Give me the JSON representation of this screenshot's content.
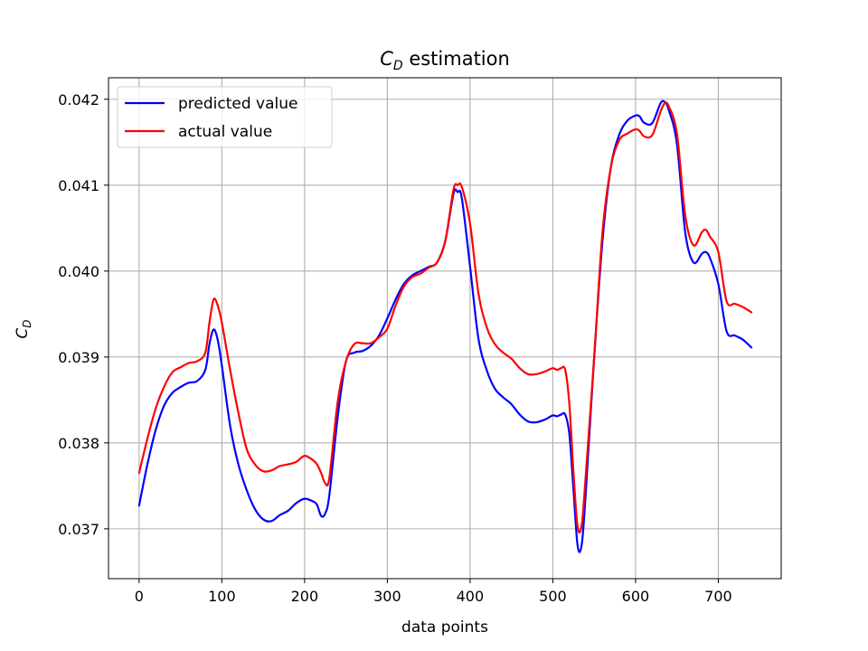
{
  "chart_data": {
    "type": "line",
    "title": "C_D estimation",
    "title_main": "C",
    "title_sub": "D",
    "title_rest": " estimation",
    "xlabel": "data points",
    "ylabel_main": "C",
    "ylabel_sub": "D",
    "xlim": [
      -37,
      776
    ],
    "ylim": [
      0.03642,
      0.04225
    ],
    "xticks": [
      0,
      100,
      200,
      300,
      400,
      500,
      600,
      700
    ],
    "xtick_labels": [
      "0",
      "100",
      "200",
      "300",
      "400",
      "500",
      "600",
      "700"
    ],
    "yticks": [
      0.037,
      0.038,
      0.039,
      0.04,
      0.041,
      0.042
    ],
    "ytick_labels": [
      "0.037",
      "0.038",
      "0.039",
      "0.040",
      "0.041",
      "0.042"
    ],
    "grid": true,
    "legend_position": "top-left",
    "series": [
      {
        "name": "predicted value",
        "color": "#0000ff",
        "x": [
          0,
          10,
          20,
          30,
          40,
          50,
          60,
          70,
          80,
          85,
          90,
          95,
          100,
          110,
          120,
          130,
          140,
          150,
          160,
          170,
          180,
          190,
          200,
          210,
          215,
          220,
          225,
          230,
          240,
          250,
          260,
          270,
          280,
          290,
          300,
          310,
          320,
          330,
          340,
          350,
          360,
          370,
          380,
          385,
          390,
          400,
          410,
          420,
          430,
          440,
          450,
          460,
          470,
          480,
          490,
          500,
          505,
          510,
          515,
          520,
          525,
          530,
          535,
          540,
          550,
          560,
          570,
          580,
          590,
          600,
          605,
          610,
          620,
          630,
          635,
          640,
          650,
          660,
          670,
          680,
          685,
          690,
          700,
          710,
          720,
          730,
          740
        ],
        "y": [
          0.03727,
          0.03775,
          0.03815,
          0.03843,
          0.03858,
          0.03865,
          0.0387,
          0.03872,
          0.03885,
          0.03915,
          0.03932,
          0.0392,
          0.0389,
          0.0382,
          0.03775,
          0.03745,
          0.03723,
          0.03711,
          0.03709,
          0.03716,
          0.03721,
          0.0373,
          0.03735,
          0.03732,
          0.03728,
          0.03715,
          0.03718,
          0.0374,
          0.0383,
          0.03895,
          0.03905,
          0.03907,
          0.03913,
          0.03925,
          0.03945,
          0.03967,
          0.03985,
          0.03995,
          0.04,
          0.04005,
          0.0401,
          0.04035,
          0.0409,
          0.04092,
          0.04085,
          0.04005,
          0.03922,
          0.03885,
          0.03863,
          0.03853,
          0.03845,
          0.03833,
          0.03825,
          0.03824,
          0.03827,
          0.03832,
          0.03831,
          0.03833,
          0.03833,
          0.0381,
          0.03745,
          0.0368,
          0.03682,
          0.03745,
          0.039,
          0.04035,
          0.0412,
          0.04158,
          0.04175,
          0.04181,
          0.0418,
          0.04173,
          0.04172,
          0.04195,
          0.04197,
          0.04188,
          0.04148,
          0.04045,
          0.0401,
          0.0402,
          0.04022,
          0.04015,
          0.03985,
          0.0393,
          0.03925,
          0.0392,
          0.03911
        ]
      },
      {
        "name": "actual value",
        "color": "#ff0000",
        "x": [
          0,
          10,
          20,
          30,
          40,
          50,
          60,
          70,
          80,
          85,
          90,
          95,
          100,
          110,
          120,
          130,
          140,
          150,
          160,
          170,
          180,
          190,
          200,
          210,
          215,
          220,
          225,
          230,
          240,
          250,
          260,
          270,
          280,
          290,
          300,
          310,
          320,
          330,
          340,
          350,
          360,
          370,
          380,
          385,
          390,
          400,
          410,
          420,
          430,
          440,
          450,
          460,
          470,
          480,
          490,
          500,
          505,
          510,
          515,
          520,
          525,
          530,
          535,
          540,
          550,
          560,
          570,
          580,
          590,
          600,
          605,
          610,
          620,
          630,
          635,
          640,
          650,
          660,
          670,
          680,
          685,
          690,
          700,
          710,
          720,
          730,
          740
        ],
        "y": [
          0.03765,
          0.03805,
          0.0384,
          0.03865,
          0.03882,
          0.03888,
          0.03893,
          0.03895,
          0.03905,
          0.0394,
          0.03967,
          0.0396,
          0.0394,
          0.03885,
          0.03835,
          0.03793,
          0.03775,
          0.03767,
          0.03768,
          0.03773,
          0.03775,
          0.03778,
          0.03785,
          0.0378,
          0.03775,
          0.03765,
          0.03753,
          0.0376,
          0.03848,
          0.03895,
          0.03915,
          0.03916,
          0.03916,
          0.03923,
          0.03933,
          0.0396,
          0.03982,
          0.03993,
          0.03997,
          0.04004,
          0.0401,
          0.04035,
          0.04095,
          0.041,
          0.04098,
          0.04055,
          0.03975,
          0.03935,
          0.03915,
          0.03905,
          0.03898,
          0.03887,
          0.0388,
          0.0388,
          0.03883,
          0.03887,
          0.03885,
          0.03887,
          0.03885,
          0.03845,
          0.03765,
          0.03702,
          0.03705,
          0.03765,
          0.039,
          0.04045,
          0.0412,
          0.04152,
          0.0416,
          0.04165,
          0.04163,
          0.04157,
          0.04158,
          0.04185,
          0.04195,
          0.04192,
          0.0416,
          0.04065,
          0.0403,
          0.04045,
          0.04048,
          0.0404,
          0.04022,
          0.03965,
          0.03962,
          0.03958,
          0.03952
        ]
      }
    ]
  }
}
